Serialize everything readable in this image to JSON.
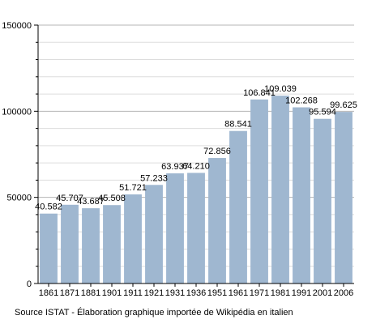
{
  "chart_data": {
    "type": "bar",
    "categories": [
      "1861",
      "1871",
      "1881",
      "1901",
      "1911",
      "1921",
      "1931",
      "1936",
      "1951",
      "1961",
      "1971",
      "1981",
      "1991",
      "2001",
      "2006"
    ],
    "values": [
      40582,
      45707,
      43687,
      45508,
      51721,
      57233,
      63937,
      64210,
      72856,
      88541,
      106841,
      109039,
      102268,
      95594,
      99625
    ],
    "value_labels": [
      "40.582",
      "45.707",
      "43.687",
      "45.508",
      "51.721",
      "57.233",
      "63.937",
      "64.210",
      "72.856",
      "88.541",
      "106.841",
      "109.039",
      "102.268",
      "95.594",
      "99.625"
    ],
    "ylim": [
      0,
      150000
    ],
    "yticks": [
      0,
      50000,
      100000,
      150000
    ],
    "ytick_labels": [
      "0",
      "50000",
      "100000",
      "150000"
    ],
    "grid": true,
    "bar_color": "#9fb7d0",
    "title": "",
    "xlabel": "",
    "ylabel": ""
  },
  "source_text": "Source ISTAT - Élaboration graphique importée de Wikipédia en italien"
}
